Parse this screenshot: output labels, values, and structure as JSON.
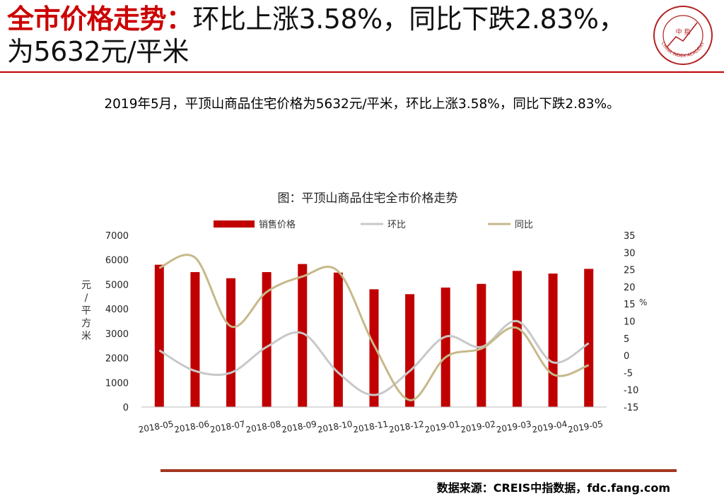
{
  "title": {
    "lead": "全市价格走势：",
    "rest": "环比上涨3.58%，同比下跌2.83%，为5632元/平米"
  },
  "logo": {
    "center_text": "中 指",
    "ring_text": "CHINA INDEX ACADEMY"
  },
  "summary": "2019年5月，平顶山商品住宅价格为5632元/平米，环比上涨3.58%，同比下跌2.83%。",
  "source": "数据来源：CREIS中指数据，fdc.fang.com",
  "colors": {
    "accent": "#cc0000",
    "bar": "#c00000",
    "mom_line": "#c8c8c8",
    "yoy_line": "#c6b98a",
    "rule": "#a3361e"
  },
  "chart_data": {
    "type": "bar",
    "title": "图：平顶山商品住宅全市价格走势",
    "categories": [
      "2018-05",
      "2018-06",
      "2018-07",
      "2018-08",
      "2018-09",
      "2018-10",
      "2018-11",
      "2018-12",
      "2019-01",
      "2019-02",
      "2019-03",
      "2019-04",
      "2019-05"
    ],
    "series": [
      {
        "name": "销售价格",
        "kind": "bar",
        "axis": "left",
        "values": [
          5800,
          5500,
          5250,
          5500,
          5830,
          5480,
          4800,
          4600,
          4870,
          5020,
          5550,
          5440,
          5632
        ]
      },
      {
        "name": "环比",
        "kind": "line",
        "axis": "right",
        "values": [
          1.5,
          -4.5,
          -5.0,
          2.5,
          6.5,
          -5.0,
          -11.5,
          -4.5,
          5.5,
          2.5,
          10.0,
          -2.0,
          3.58
        ]
      },
      {
        "name": "同比",
        "kind": "line",
        "axis": "right",
        "values": [
          25.5,
          28.5,
          8.5,
          18.5,
          23.0,
          24.5,
          3.0,
          -13.0,
          -0.5,
          2.0,
          8.0,
          -5.5,
          -2.83
        ]
      }
    ],
    "y_left": {
      "min": 0,
      "max": 7000,
      "step": 1000,
      "ticks": [
        "0",
        "1000",
        "2000",
        "3000",
        "4000",
        "5000",
        "6000",
        "7000"
      ],
      "label": "元/平方米"
    },
    "y_right": {
      "min": -15,
      "max": 35,
      "step": 5,
      "ticks": [
        "-15",
        "-10",
        "-5",
        "0",
        "5",
        "10",
        "15",
        "20",
        "25",
        "30",
        "35"
      ],
      "label": "%"
    },
    "legend_position": "top",
    "grid": false
  }
}
